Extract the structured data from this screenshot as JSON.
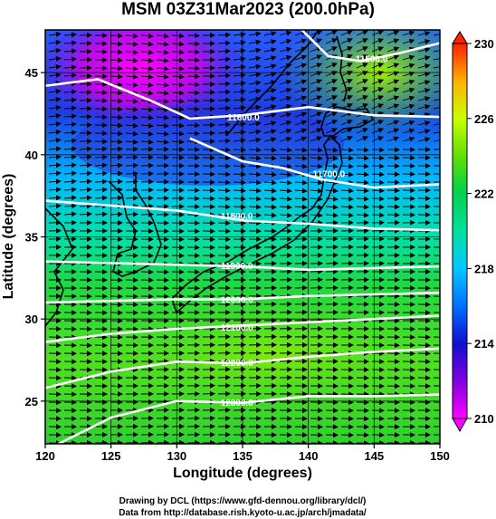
{
  "chart_data": {
    "type": "heatmap",
    "title": "MSM 03Z31Mar2023 (200.0hPa)",
    "xlabel": "Longitude (degrees)",
    "ylabel": "Latitude  (degrees)",
    "xlim": [
      120,
      150
    ],
    "ylim": [
      22.4,
      47.6
    ],
    "x_ticks": [
      120,
      125,
      130,
      135,
      140,
      145,
      150
    ],
    "y_ticks": [
      25,
      30,
      35,
      40,
      45
    ],
    "grid": true,
    "field": "temperature",
    "colorbar": {
      "min": 210,
      "max": 230,
      "tick_labels": [
        210,
        214,
        218,
        222,
        226,
        230
      ],
      "palette": [
        "#ff00ff",
        "#1010d0",
        "#00c8ff",
        "#00d050",
        "#c8ff00",
        "#ff2000"
      ]
    },
    "contour_series": [
      {
        "label": "11500.0",
        "points": [
          [
            139.5,
            47.6
          ],
          [
            141.5,
            46.0
          ],
          [
            144.0,
            45.7
          ],
          [
            147.0,
            46.2
          ],
          [
            150.0,
            46.8
          ]
        ]
      },
      {
        "label": "11600.0",
        "points": [
          [
            120.0,
            44.2
          ],
          [
            124.0,
            44.6
          ],
          [
            128.0,
            43.3
          ],
          [
            131.0,
            42.2
          ],
          [
            135.0,
            42.4
          ],
          [
            140.0,
            42.9
          ],
          [
            145.0,
            42.4
          ],
          [
            150.0,
            42.3
          ]
        ]
      },
      {
        "label": "11700.0",
        "points": [
          [
            131.0,
            41.0
          ],
          [
            135.0,
            39.6
          ],
          [
            138.0,
            39.2
          ],
          [
            141.0,
            38.5
          ],
          [
            145.0,
            38.0
          ],
          [
            150.0,
            38.2
          ]
        ]
      },
      {
        "label": "11800.0",
        "points": [
          [
            120.0,
            37.2
          ],
          [
            125.0,
            36.9
          ],
          [
            130.0,
            36.6
          ],
          [
            135.0,
            36.0
          ],
          [
            140.0,
            35.8
          ],
          [
            145.0,
            35.5
          ],
          [
            150.0,
            35.4
          ]
        ]
      },
      {
        "label": "11900.0",
        "points": [
          [
            120.0,
            33.5
          ],
          [
            125.0,
            33.4
          ],
          [
            130.0,
            33.3
          ],
          [
            135.0,
            33.2
          ],
          [
            140.0,
            33.0
          ],
          [
            145.0,
            33.1
          ],
          [
            150.0,
            33.2
          ]
        ]
      },
      {
        "label": "12000.0",
        "points": [
          [
            120.0,
            31.0
          ],
          [
            125.0,
            31.1
          ],
          [
            130.0,
            31.2
          ],
          [
            135.0,
            31.2
          ],
          [
            140.0,
            31.4
          ],
          [
            145.0,
            31.5
          ],
          [
            150.0,
            31.6
          ]
        ]
      },
      {
        "label": "12100.0",
        "points": [
          [
            120.0,
            28.6
          ],
          [
            125.0,
            29.1
          ],
          [
            130.0,
            29.4
          ],
          [
            135.0,
            29.6
          ],
          [
            140.0,
            29.8
          ],
          [
            145.0,
            30.0
          ],
          [
            150.0,
            30.2
          ]
        ]
      },
      {
        "label": "12200.0",
        "points": [
          [
            120.0,
            25.8
          ],
          [
            125.0,
            26.8
          ],
          [
            130.0,
            27.4
          ],
          [
            135.0,
            27.3
          ],
          [
            140.0,
            27.7
          ],
          [
            145.0,
            28.0
          ],
          [
            150.0,
            28.2
          ]
        ]
      },
      {
        "label": "12300.0",
        "points": [
          [
            121.0,
            22.4
          ],
          [
            125.0,
            24.0
          ],
          [
            130.0,
            25.0
          ],
          [
            135.0,
            24.9
          ],
          [
            140.0,
            25.3
          ],
          [
            145.0,
            25.3
          ],
          [
            150.0,
            25.4
          ]
        ]
      }
    ]
  },
  "credits": {
    "line1": "Drawing by DCL (https://www.gfd-dennou.org/library/dcl/)",
    "line2": "Data from http://database.rish.kyoto-u.ac.jp/arch/jmadata/"
  }
}
